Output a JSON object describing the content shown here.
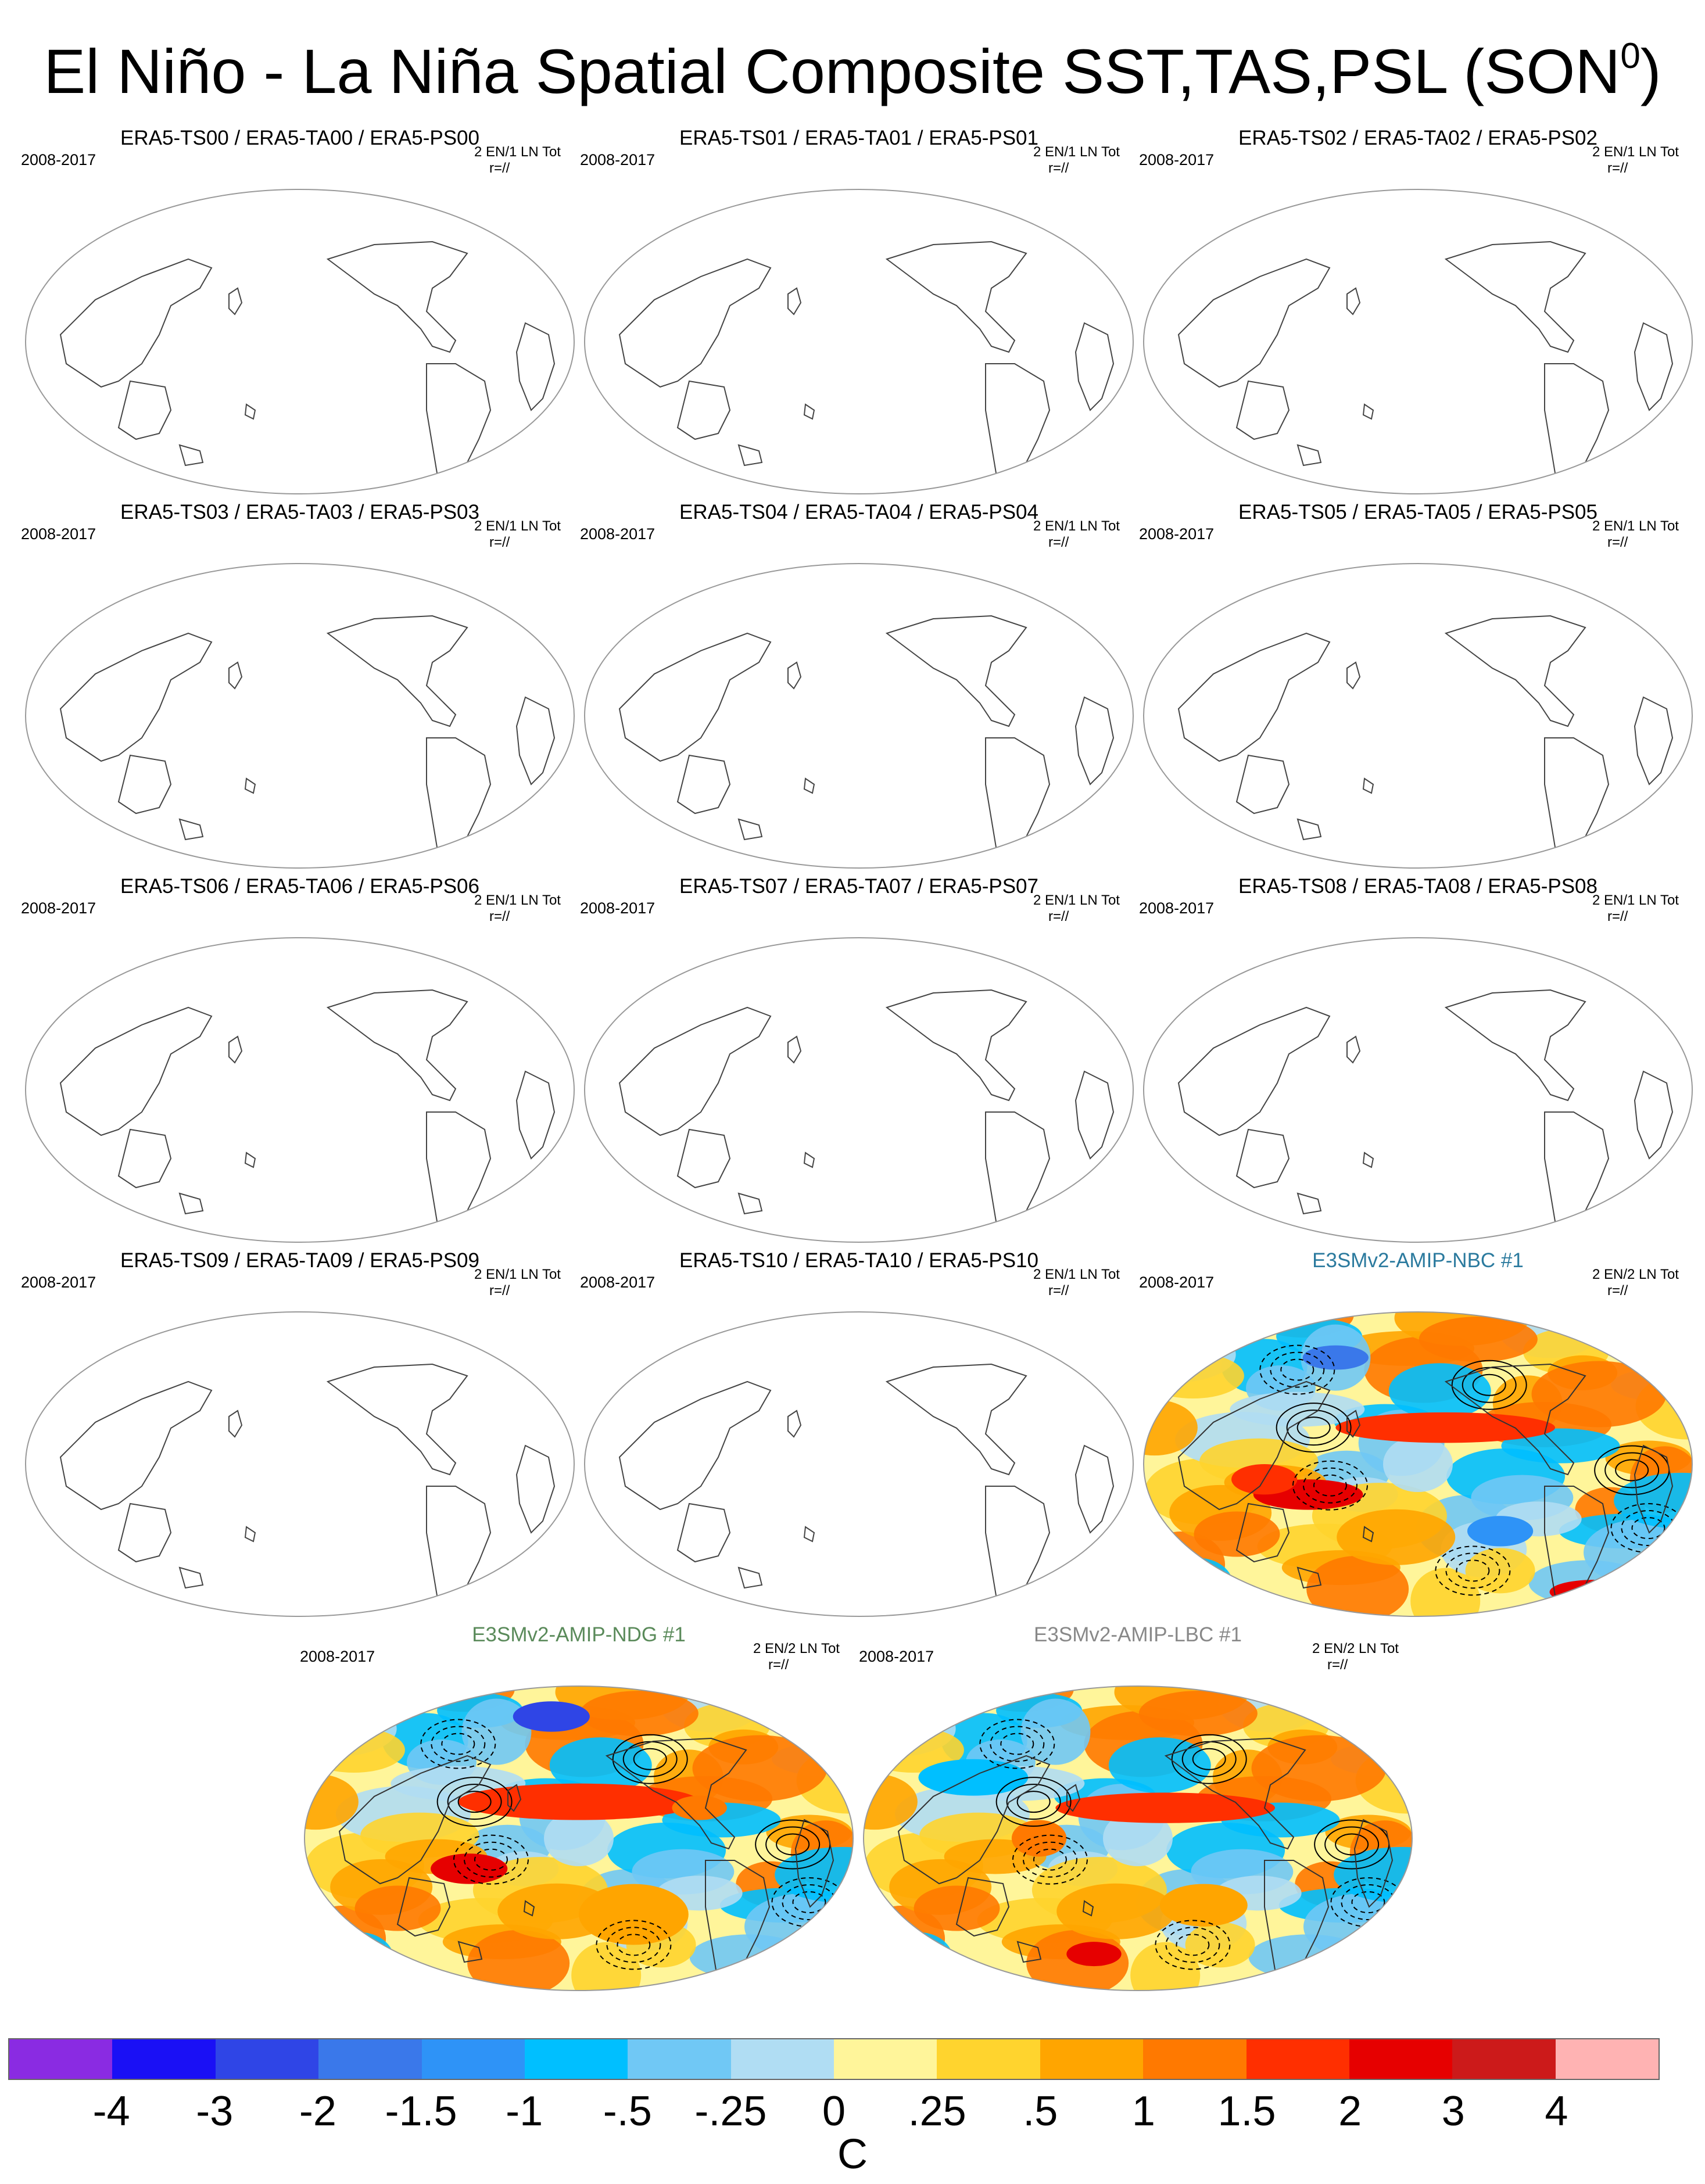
{
  "title": {
    "text": "El Niño - La Niña Spatial Composite SST,TAS,PSL (SON",
    "superscript": "0",
    "close": ")"
  },
  "panels": [
    {
      "title": "ERA5-TS00 / ERA5-TA00 / ERA5-PS00",
      "period": "2008-2017",
      "count": "2 EN/1 LN Tot",
      "corr": "r=//",
      "filled": false
    },
    {
      "title": "ERA5-TS01 / ERA5-TA01 / ERA5-PS01",
      "period": "2008-2017",
      "count": "2 EN/1 LN Tot",
      "corr": "r=//",
      "filled": false
    },
    {
      "title": "ERA5-TS02 / ERA5-TA02 / ERA5-PS02",
      "period": "2008-2017",
      "count": "2 EN/1 LN Tot",
      "corr": "r=//",
      "filled": false
    },
    {
      "title": "ERA5-TS03 / ERA5-TA03 / ERA5-PS03",
      "period": "2008-2017",
      "count": "2 EN/1 LN Tot",
      "corr": "r=//",
      "filled": false
    },
    {
      "title": "ERA5-TS04 / ERA5-TA04 / ERA5-PS04",
      "period": "2008-2017",
      "count": "2 EN/1 LN Tot",
      "corr": "r=//",
      "filled": false
    },
    {
      "title": "ERA5-TS05 / ERA5-TA05 / ERA5-PS05",
      "period": "2008-2017",
      "count": "2 EN/1 LN Tot",
      "corr": "r=//",
      "filled": false
    },
    {
      "title": "ERA5-TS06 / ERA5-TA06 / ERA5-PS06",
      "period": "2008-2017",
      "count": "2 EN/1 LN Tot",
      "corr": "r=//",
      "filled": false
    },
    {
      "title": "ERA5-TS07 / ERA5-TA07 / ERA5-PS07",
      "period": "2008-2017",
      "count": "2 EN/1 LN Tot",
      "corr": "r=//",
      "filled": false
    },
    {
      "title": "ERA5-TS08 / ERA5-TA08 / ERA5-PS08",
      "period": "2008-2017",
      "count": "2 EN/1 LN Tot",
      "corr": "r=//",
      "filled": false
    },
    {
      "title": "ERA5-TS09 / ERA5-TA09 / ERA5-PS09",
      "period": "2008-2017",
      "count": "2 EN/1 LN Tot",
      "corr": "r=//",
      "filled": false
    },
    {
      "title": "ERA5-TS10 / ERA5-TA10 / ERA5-PS10",
      "period": "2008-2017",
      "count": "2 EN/1 LN Tot",
      "corr": "r=//",
      "filled": false
    },
    {
      "title": "E3SMv2-AMIP-NBC #1",
      "period": "2008-2017",
      "count": "2 EN/2 LN Tot",
      "corr": "r=//",
      "filled": true
    },
    {
      "title": "E3SMv2-AMIP-NDG #1",
      "period": "2008-2017",
      "count": "2 EN/2 LN Tot",
      "corr": "r=//",
      "filled": true
    },
    {
      "title": "E3SMv2-AMIP-LBC #1",
      "period": "2008-2017",
      "count": "2 EN/2 LN Tot",
      "corr": "r=//",
      "filled": true
    }
  ],
  "colorbar": {
    "colors": [
      "#8a2be2",
      "#1a10f5",
      "#2f45e6",
      "#3a78ea",
      "#2e93f7",
      "#00bfff",
      "#70c8f5",
      "#b0ddf3",
      "#fff59a",
      "#ffd42e",
      "#ffa500",
      "#ff7900",
      "#ff2f00",
      "#e60000",
      "#cc1a1a",
      "#ffb3b3"
    ],
    "labels": [
      "-4",
      "-3",
      "-2",
      "-1.5",
      "-1",
      "-.5",
      "-.25",
      "0",
      ".25",
      ".5",
      "1",
      "1.5",
      "2",
      "3",
      "4"
    ],
    "units": "C"
  }
}
